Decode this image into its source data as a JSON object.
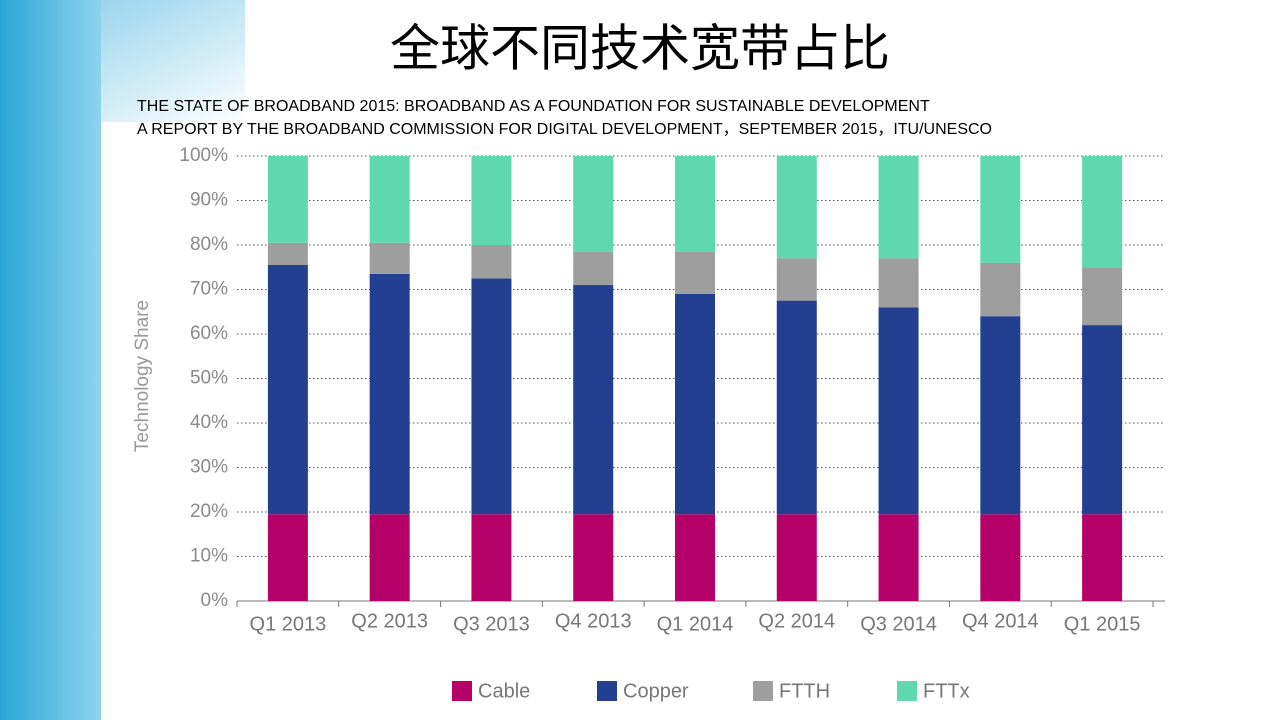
{
  "chart_data": {
    "type": "stacked_bar",
    "title": "全球不同技术宽带占比",
    "subtitle": [
      "THE STATE OF BROADBAND 2015: BROADBAND AS A FOUNDATION FOR SUSTAINABLE DEVELOPMENT",
      "A REPORT BY THE BROADBAND COMMISSION FOR DIGITAL DEVELOPMENT，SEPTEMBER 2015，ITU/UNESCO"
    ],
    "y_label": "Technology Share",
    "categories": [
      "Q1 2013",
      "Q2 2013",
      "Q3 2013",
      "Q4 2013",
      "Q1 2014",
      "Q2 2014",
      "Q3 2014",
      "Q4 2014",
      "Q1 2015"
    ],
    "series": [
      {
        "name": "Cable",
        "color": "#b5006a",
        "values": [
          19.5,
          19.5,
          19.5,
          19.5,
          19.5,
          19.5,
          19.5,
          19.5,
          19.5
        ]
      },
      {
        "name": "Copper",
        "color": "#233f8f",
        "values": [
          56,
          54,
          53,
          51.5,
          49.5,
          48,
          46.5,
          44.5,
          42.5
        ]
      },
      {
        "name": "FTTH",
        "color": "#9e9e9f",
        "values": [
          5,
          7,
          7.5,
          7.5,
          9.5,
          9.5,
          11,
          12,
          13
        ]
      },
      {
        "name": "FTTx",
        "color": "#5fd8b0",
        "values": [
          19.5,
          19.5,
          20,
          21.5,
          21.5,
          23,
          23,
          24,
          25
        ]
      }
    ],
    "ylim": [
      0,
      100
    ],
    "yticks": [
      {
        "value": 0,
        "label": "0%"
      },
      {
        "value": 10,
        "label": "10%"
      },
      {
        "value": 20,
        "label": "20%"
      },
      {
        "value": 30,
        "label": "30%"
      },
      {
        "value": 40,
        "label": "40%"
      },
      {
        "value": 50,
        "label": "50%"
      },
      {
        "value": 60,
        "label": "60%"
      },
      {
        "value": 70,
        "label": "70%"
      },
      {
        "value": 80,
        "label": "80%"
      },
      {
        "value": 90,
        "label": "90%"
      },
      {
        "value": 100,
        "label": "100%"
      }
    ],
    "grid": true,
    "legend": "bottom"
  }
}
